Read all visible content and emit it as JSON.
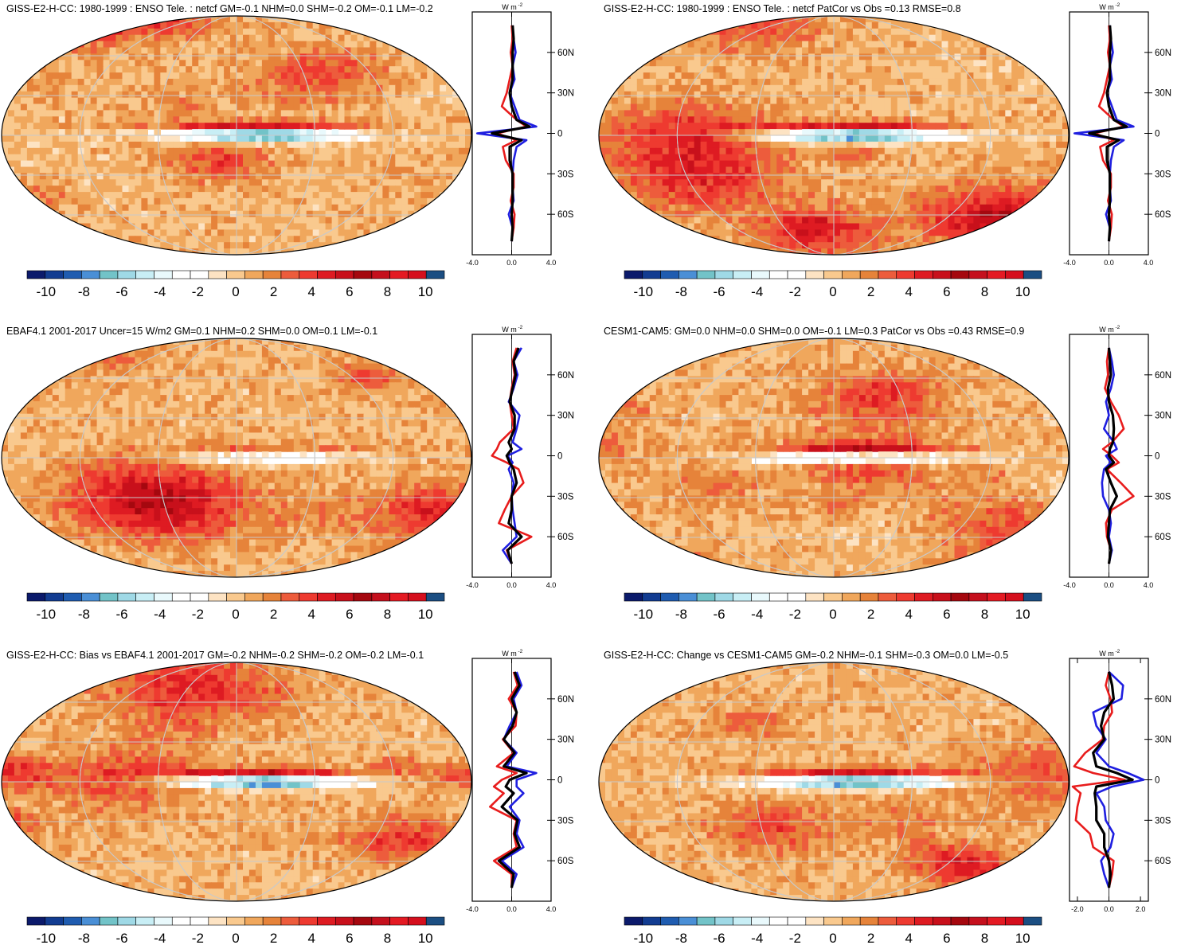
{
  "colorbar": {
    "colors": [
      "#0b1a6b",
      "#123c91",
      "#1f5cb0",
      "#4a8fd6",
      "#72c3c8",
      "#9fd9e6",
      "#c8eef5",
      "#e9f9fc",
      "#ffffff",
      "#ffffff",
      "#fde3c3",
      "#f9c98e",
      "#f0a75c",
      "#e6833a",
      "#ed5c3c",
      "#ee3a30",
      "#de1b22",
      "#c8101b",
      "#a5080f",
      "#c5101d",
      "#e41a23",
      "#d50f1d",
      "#1b4e82"
    ],
    "tick_labels": [
      "-10",
      "-8",
      "-6",
      "-4",
      "-2",
      "0",
      "2",
      "4",
      "6",
      "8",
      "10"
    ]
  },
  "map_grid": {
    "lat_labels": [
      "60N",
      "30N",
      "0",
      "30S",
      "60S"
    ]
  },
  "line_colors": {
    "obs": "#1f1fe0",
    "model": "#e81c1c",
    "mean": "#000000"
  },
  "chart_data": [
    {
      "type": "heatmap",
      "title": "GISS-E2-H-CC: 1980-1999 : ENSO Tele. : netcf GM=-0.1 NHM=0.0 SHM=-0.2 OM=-0.1 LM=-0.2",
      "colorbar_range": [
        -11,
        11
      ],
      "zonal_profile": {
        "type": "line",
        "unit_label": "W m",
        "unit_sup": "-2",
        "xlim": [
          -4.0,
          4.0
        ],
        "x_tick_labels": [
          "-4.0",
          "0.0",
          "4.0"
        ],
        "lat": [
          80,
          70,
          60,
          50,
          40,
          30,
          20,
          10,
          5,
          0,
          -5,
          -10,
          -20,
          -30,
          -40,
          -50,
          -60,
          -70,
          -80
        ],
        "series": [
          {
            "values": [
              0.1,
              0.2,
              0.4,
              0.1,
              0.3,
              -0.2,
              0.3,
              0.8,
              2.5,
              -3.5,
              1.5,
              0.5,
              0.2,
              0.1,
              0.1,
              0.2,
              -0.3,
              0.1,
              0.0
            ]
          },
          {
            "values": [
              0.0,
              0.1,
              -0.1,
              0.1,
              -0.2,
              -0.5,
              -1.0,
              0.5,
              1.5,
              -1.5,
              0.5,
              -0.9,
              -0.6,
              0.2,
              0.2,
              -0.1,
              0.3,
              0.2,
              0.0
            ]
          },
          {
            "values": [
              0.1,
              0.2,
              0.1,
              0.1,
              0.1,
              -0.2,
              0.0,
              0.5,
              1.8,
              -2.0,
              1.0,
              -0.2,
              -0.2,
              0.1,
              0.1,
              0.1,
              0.0,
              0.1,
              0.0
            ]
          }
        ]
      }
    },
    {
      "type": "heatmap",
      "title": "GISS-E2-H-CC: 1980-1999 : ENSO Tele. : netcf PatCor vs Obs =0.13 RMSE=0.8",
      "colorbar_range": [
        -11,
        11
      ],
      "zonal_profile": {
        "type": "line",
        "unit_label": "W m",
        "unit_sup": "-2",
        "xlim": [
          -4.0,
          4.0
        ],
        "x_tick_labels": [
          "-4.0",
          "0.0",
          "4.0"
        ],
        "lat": [
          80,
          70,
          60,
          50,
          40,
          30,
          20,
          10,
          5,
          0,
          -5,
          -10,
          -20,
          -30,
          -40,
          -50,
          -60,
          -70,
          -80
        ],
        "series": [
          {
            "values": [
              0.1,
              0.2,
              0.4,
              0.1,
              0.3,
              -0.2,
              0.3,
              0.8,
              2.5,
              -3.5,
              1.5,
              0.5,
              0.2,
              0.1,
              0.1,
              0.2,
              -0.3,
              0.1,
              0.0
            ]
          },
          {
            "values": [
              0.0,
              0.1,
              -0.1,
              0.1,
              -0.2,
              -0.5,
              -1.0,
              0.5,
              1.5,
              -1.5,
              0.5,
              -0.9,
              -0.6,
              0.2,
              0.2,
              -0.1,
              0.3,
              0.2,
              0.0
            ]
          },
          {
            "values": [
              0.1,
              0.2,
              0.1,
              0.1,
              0.1,
              -0.2,
              0.0,
              0.5,
              1.8,
              -2.0,
              1.0,
              -0.2,
              -0.2,
              0.1,
              0.1,
              0.1,
              0.0,
              0.1,
              0.0
            ]
          }
        ]
      }
    },
    {
      "type": "heatmap",
      "title": "EBAF4.1 2001-2017 Uncer=15 W/m2 GM=0.1 NHM=0.2 SHM=0.0 OM=0.1 LM=-0.1",
      "colorbar_range": [
        -11,
        11
      ],
      "zonal_profile": {
        "type": "line",
        "unit_label": "W m",
        "unit_sup": "-2",
        "xlim": [
          -4.0,
          4.0
        ],
        "x_tick_labels": [
          "-4.0",
          "0.0",
          "4.0"
        ],
        "lat": [
          80,
          70,
          60,
          50,
          40,
          30,
          20,
          10,
          5,
          0,
          -5,
          -10,
          -20,
          -30,
          -40,
          -50,
          -60,
          -70,
          -80
        ],
        "series": [
          {
            "values": [
              1.0,
              0.2,
              0.6,
              0.2,
              -0.3,
              0.8,
              0.5,
              0.1,
              1.0,
              -0.4,
              0.1,
              -0.3,
              0.2,
              0.0,
              0.1,
              0.3,
              0.5,
              -0.9,
              0.0
            ]
          },
          {
            "values": [
              0.5,
              0.1,
              0.3,
              0.0,
              -0.2,
              0.0,
              0.2,
              -1.2,
              -1.5,
              -2.0,
              -0.5,
              0.7,
              1.2,
              0.0,
              -0.7,
              -1.3,
              2.0,
              -0.5,
              0.0
            ]
          },
          {
            "values": [
              0.7,
              0.2,
              0.4,
              0.1,
              -0.2,
              0.3,
              0.3,
              -0.3,
              0.0,
              -0.5,
              -0.2,
              0.2,
              0.5,
              0.0,
              0.0,
              -0.3,
              1.0,
              -0.4,
              0.0
            ]
          }
        ]
      }
    },
    {
      "type": "heatmap",
      "title": "CESM1-CAM5: GM=0.0 NHM=0.0 SHM=0.0 OM=-0.1 LM=0.3 PatCor vs Obs =0.43 RMSE=0.9",
      "colorbar_range": [
        -11,
        11
      ],
      "zonal_profile": {
        "type": "line",
        "unit_label": "W m",
        "unit_sup": "-2",
        "xlim": [
          -4.0,
          4.0
        ],
        "x_tick_labels": [
          "-4.0",
          "0.0",
          "4.0"
        ],
        "lat": [
          80,
          70,
          60,
          50,
          40,
          30,
          20,
          10,
          5,
          0,
          -5,
          -10,
          -20,
          -30,
          -40,
          -50,
          -60,
          -70,
          -80
        ],
        "series": [
          {
            "values": [
              0.0,
              0.3,
              0.5,
              0.2,
              -0.3,
              0.0,
              -0.5,
              0.5,
              0.8,
              -0.3,
              0.2,
              -0.5,
              -0.7,
              -0.6,
              0.0,
              0.2,
              0.0,
              0.3,
              0.0
            ]
          },
          {
            "values": [
              0.0,
              -0.2,
              -0.1,
              -0.4,
              0.2,
              1.0,
              1.5,
              0.3,
              -0.6,
              0.3,
              1.0,
              -0.2,
              1.2,
              2.5,
              0.3,
              -0.3,
              -0.2,
              0.2,
              0.0
            ]
          },
          {
            "values": [
              0.0,
              0.1,
              0.2,
              -0.1,
              0.0,
              0.4,
              0.5,
              0.4,
              0.1,
              0.0,
              0.5,
              -0.3,
              0.2,
              0.8,
              0.1,
              0.0,
              -0.1,
              0.2,
              0.0
            ]
          }
        ]
      }
    },
    {
      "type": "heatmap",
      "title": "GISS-E2-H-CC: Bias vs EBAF4.1 2001-2017 GM=-0.2 NHM=-0.2 SHM=-0.2 OM=-0.2 LM=-0.1",
      "colorbar_range": [
        -11,
        11
      ],
      "zonal_profile": {
        "type": "line",
        "unit_label": "W m",
        "unit_sup": "-2",
        "xlim": [
          -4.0,
          4.0
        ],
        "x_tick_labels": [
          "-4.0",
          "0.0",
          "4.0"
        ],
        "lat": [
          80,
          70,
          60,
          50,
          40,
          30,
          20,
          10,
          5,
          0,
          -5,
          -10,
          -20,
          -30,
          -40,
          -50,
          -60,
          -70,
          -80
        ],
        "series": [
          {
            "values": [
              0.5,
              1.0,
              0.2,
              0.5,
              -0.2,
              -0.8,
              0.5,
              -0.5,
              2.5,
              0.5,
              0.5,
              1.2,
              -0.2,
              0.8,
              0.5,
              1.2,
              -1.0,
              0.5,
              0.0
            ]
          },
          {
            "values": [
              0.2,
              0.6,
              -0.3,
              0.5,
              0.4,
              -0.9,
              0.2,
              -1.5,
              0.5,
              -1.0,
              -1.8,
              -0.8,
              -2.2,
              0.5,
              0.2,
              0.5,
              -1.8,
              0.0,
              0.0
            ]
          },
          {
            "values": [
              0.3,
              0.8,
              0.0,
              0.5,
              0.1,
              -0.8,
              0.3,
              -0.8,
              1.5,
              -0.2,
              -0.6,
              0.2,
              -1.0,
              0.6,
              0.3,
              0.8,
              -1.3,
              0.2,
              0.0
            ]
          }
        ]
      }
    },
    {
      "type": "heatmap",
      "title": "GISS-E2-H-CC: Change vs CESM1-CAM5 GM=-0.2 NHM=-0.1 SHM=-0.3 OM=0.0 LM=-0.5",
      "colorbar_range": [
        -11,
        11
      ],
      "zonal_profile": {
        "type": "line",
        "unit_label": "W m",
        "unit_sup": "-2",
        "xlim": [
          -2.5,
          2.5
        ],
        "x_tick_labels": [
          "-2.0",
          "0.0",
          "2.0"
        ],
        "lat": [
          80,
          70,
          60,
          50,
          40,
          30,
          20,
          10,
          5,
          0,
          -5,
          -10,
          -20,
          -30,
          -40,
          -50,
          -60,
          -70,
          -80
        ],
        "series": [
          {
            "values": [
              0.0,
              0.9,
              0.8,
              -1.0,
              -0.8,
              -0.2,
              -0.8,
              0.0,
              1.2,
              2.2,
              0.2,
              -0.8,
              -0.3,
              -0.2,
              0.3,
              0.1,
              -0.5,
              -0.3,
              0.0
            ]
          },
          {
            "values": [
              0.0,
              -0.2,
              0.1,
              0.2,
              -0.3,
              -0.4,
              -1.5,
              -2.2,
              -1.0,
              1.0,
              -2.3,
              -1.8,
              -2.0,
              -2.1,
              -1.2,
              -1.0,
              0.3,
              0.2,
              0.0
            ]
          },
          {
            "values": [
              0.0,
              0.2,
              0.3,
              -0.3,
              -0.5,
              -0.3,
              -1.0,
              -0.8,
              0.5,
              1.5,
              -0.8,
              -0.9,
              -0.8,
              -0.8,
              -0.3,
              -0.3,
              0.0,
              0.1,
              0.0
            ]
          }
        ]
      }
    }
  ]
}
